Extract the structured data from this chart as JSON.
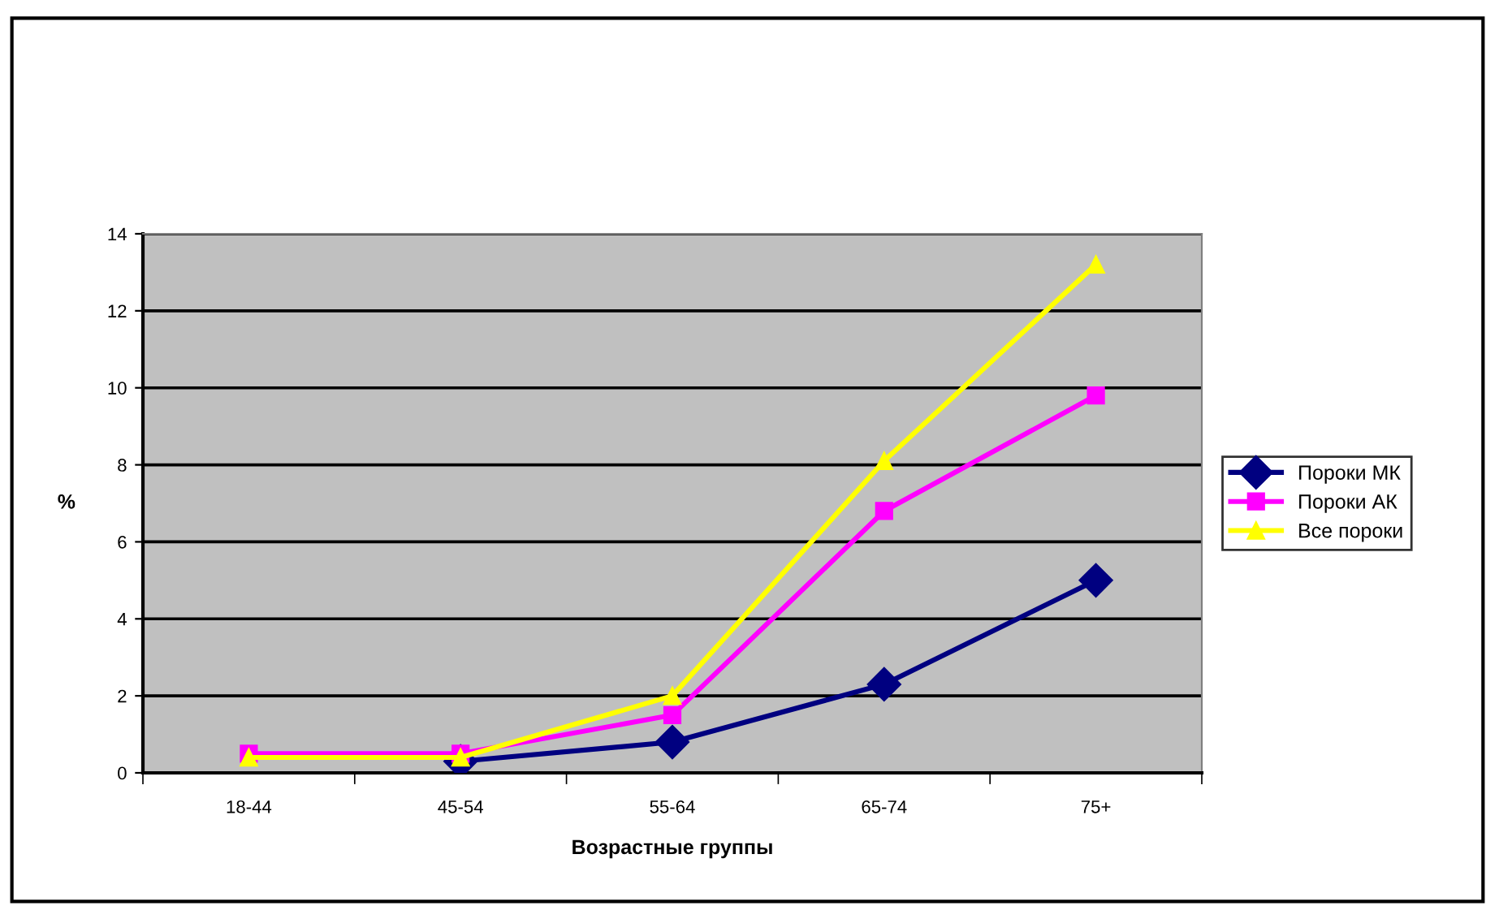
{
  "chart_data": {
    "type": "line",
    "xlabel": "Возрастные группы",
    "ylabel": "%",
    "categories": [
      "18-44",
      "45-54",
      "55-64",
      "65-74",
      "75+"
    ],
    "series": [
      {
        "name": "Пороки МК",
        "color": "#000080",
        "marker": "diamond",
        "values": [
          null,
          0.3,
          0.8,
          2.3,
          5.0
        ]
      },
      {
        "name": "Пороки АК",
        "color": "#ff00ff",
        "marker": "square",
        "values": [
          0.5,
          0.5,
          1.5,
          6.8,
          9.8
        ]
      },
      {
        "name": "Все пороки",
        "color": "#ffff00",
        "marker": "triangle",
        "values": [
          0.4,
          0.4,
          2.0,
          8.1,
          13.2
        ]
      }
    ],
    "ylim": [
      0,
      14
    ],
    "yticks": [
      0,
      2,
      4,
      6,
      8,
      10,
      12,
      14
    ],
    "grid": "y",
    "legend": "right"
  }
}
